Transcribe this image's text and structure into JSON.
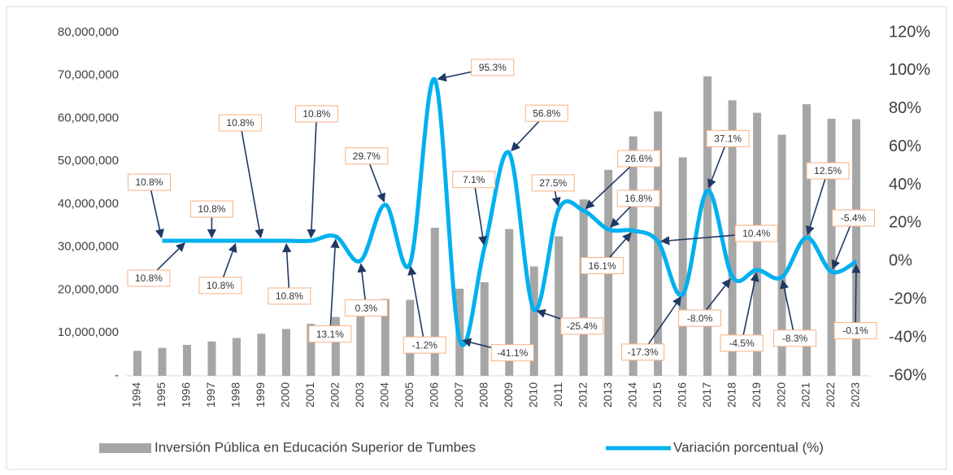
{
  "chart_data": {
    "type": "bar_line",
    "categories": [
      "1994",
      "1995",
      "1996",
      "1997",
      "1998",
      "1999",
      "2000",
      "2001",
      "2002",
      "2003",
      "2004",
      "2005",
      "2006",
      "2007",
      "2008",
      "2009",
      "2010",
      "2011",
      "2012",
      "2013",
      "2014",
      "2015",
      "2016",
      "2017",
      "2018",
      "2019",
      "2020",
      "2021",
      "2022",
      "2023"
    ],
    "series": [
      {
        "name": "Inversión Pública en Educación Superior de Tumbes",
        "color": "#a6a6a6",
        "type": "bar",
        "values": [
          5800000,
          6500000,
          7200000,
          8000000,
          8800000,
          9800000,
          10900000,
          12100000,
          13700000,
          13800000,
          17900000,
          17700000,
          34500000,
          20300000,
          21800000,
          34200000,
          25500000,
          32500000,
          41100000,
          48000000,
          55800000,
          61600000,
          50900000,
          69800000,
          64200000,
          61300000,
          56200000,
          63300000,
          59900000,
          59800000
        ]
      },
      {
        "name": "Variación porcentual (%)",
        "color": "#00b0f0",
        "type": "line",
        "axis": "y2",
        "values": [
          null,
          10.8,
          10.8,
          10.8,
          10.8,
          10.8,
          10.8,
          10.8,
          13.1,
          0.3,
          29.7,
          -1.2,
          95.3,
          -41.1,
          7.1,
          56.8,
          -25.4,
          27.5,
          26.6,
          16.8,
          16.1,
          10.4,
          -17.3,
          37.1,
          -8.0,
          -4.5,
          -8.3,
          12.5,
          -5.4,
          -0.1
        ],
        "value_labels": [
          null,
          "10.8%",
          "10.8%",
          "10.8%",
          "10.8%",
          "10.8%",
          "10.8%",
          "10.8%",
          "13.1%",
          "0.3%",
          "29.7%",
          "-1.2%",
          "95.3%",
          "-41.1%",
          "7.1%",
          "56.8%",
          "-25.4%",
          "27.5%",
          "26.6%",
          "16.8%",
          "16.1%",
          "10.4%",
          "-17.3%",
          "37.1%",
          "-8.0%",
          "-4.5%",
          "-8.3%",
          "12.5%",
          "-5.4%",
          "-0.1%"
        ]
      }
    ],
    "ylim": [
      0,
      80000000
    ],
    "yticks": [
      {
        "value": 0,
        "label": "-"
      },
      {
        "value": 10000000,
        "label": "10,000,000"
      },
      {
        "value": 20000000,
        "label": "20,000,000"
      },
      {
        "value": 30000000,
        "label": "30,000,000"
      },
      {
        "value": 40000000,
        "label": "40,000,000"
      },
      {
        "value": 50000000,
        "label": "50,000,000"
      },
      {
        "value": 60000000,
        "label": "60,000,000"
      },
      {
        "value": 70000000,
        "label": "70,000,000"
      },
      {
        "value": 80000000,
        "label": "80,000,000"
      }
    ],
    "y2lim": [
      -60,
      120
    ],
    "y2ticks": [
      {
        "value": -60,
        "label": "-60%"
      },
      {
        "value": -40,
        "label": "-40%"
      },
      {
        "value": -20,
        "label": "-20%"
      },
      {
        "value": 0,
        "label": "0%"
      },
      {
        "value": 20,
        "label": "20%"
      },
      {
        "value": 40,
        "label": "40%"
      },
      {
        "value": 60,
        "label": "60%"
      },
      {
        "value": 80,
        "label": "80%"
      },
      {
        "value": 100,
        "label": "100%"
      },
      {
        "value": 120,
        "label": "120%"
      }
    ],
    "legend": "bottom"
  }
}
